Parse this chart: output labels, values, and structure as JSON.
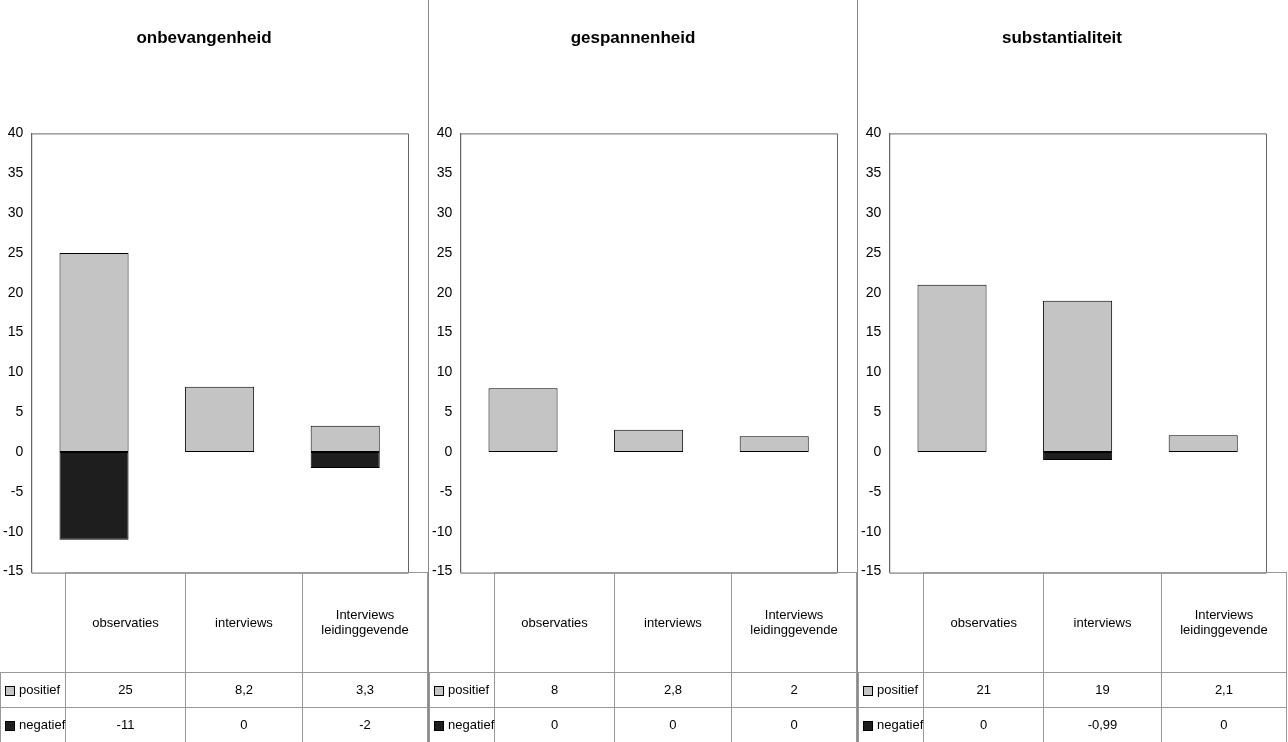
{
  "chart_data": [
    {
      "type": "bar",
      "title": "onbevangenheid",
      "categories": [
        "observaties",
        "interviews",
        "Interviews leidinggevende"
      ],
      "stacked": true,
      "ylim": [
        -15,
        40
      ],
      "yticks": [
        -15,
        -10,
        -5,
        0,
        5,
        10,
        15,
        20,
        25,
        30,
        35,
        40
      ],
      "grid": false,
      "legend": "bottom",
      "series": [
        {
          "name": "positief",
          "color": "#c4c4c4",
          "values": [
            25,
            8.2,
            3.3
          ],
          "value_labels": [
            "25",
            "8,2",
            "3,3"
          ]
        },
        {
          "name": "negatief",
          "color": "#1e1e1e",
          "values": [
            -11,
            0,
            -2
          ],
          "value_labels": [
            "-11",
            "0",
            "-2"
          ]
        }
      ]
    },
    {
      "type": "bar",
      "title": "gespannenheid",
      "categories": [
        "observaties",
        "interviews",
        "Interviews leidinggevende"
      ],
      "stacked": true,
      "ylim": [
        -15,
        40
      ],
      "yticks": [
        -15,
        -10,
        -5,
        0,
        5,
        10,
        15,
        20,
        25,
        30,
        35,
        40
      ],
      "grid": false,
      "legend": "bottom",
      "series": [
        {
          "name": "positief",
          "color": "#c4c4c4",
          "values": [
            8,
            2.8,
            2
          ],
          "value_labels": [
            "8",
            "2,8",
            "2"
          ]
        },
        {
          "name": "negatief",
          "color": "#1e1e1e",
          "values": [
            0,
            0,
            0
          ],
          "value_labels": [
            "0",
            "0",
            "0"
          ]
        }
      ]
    },
    {
      "type": "bar",
      "title": "substantialiteit",
      "categories": [
        "observaties",
        "interviews",
        "Interviews leidinggevende"
      ],
      "stacked": true,
      "ylim": [
        -15,
        40
      ],
      "yticks": [
        -15,
        -10,
        -5,
        0,
        5,
        10,
        15,
        20,
        25,
        30,
        35,
        40
      ],
      "grid": false,
      "legend": "bottom",
      "series": [
        {
          "name": "positief",
          "color": "#c4c4c4",
          "values": [
            21,
            19,
            2.1
          ],
          "value_labels": [
            "21",
            "19",
            "2,1"
          ]
        },
        {
          "name": "negatief",
          "color": "#1e1e1e",
          "values": [
            0,
            -0.99,
            0
          ],
          "value_labels": [
            "0",
            "-0,99",
            "0"
          ]
        }
      ]
    }
  ]
}
